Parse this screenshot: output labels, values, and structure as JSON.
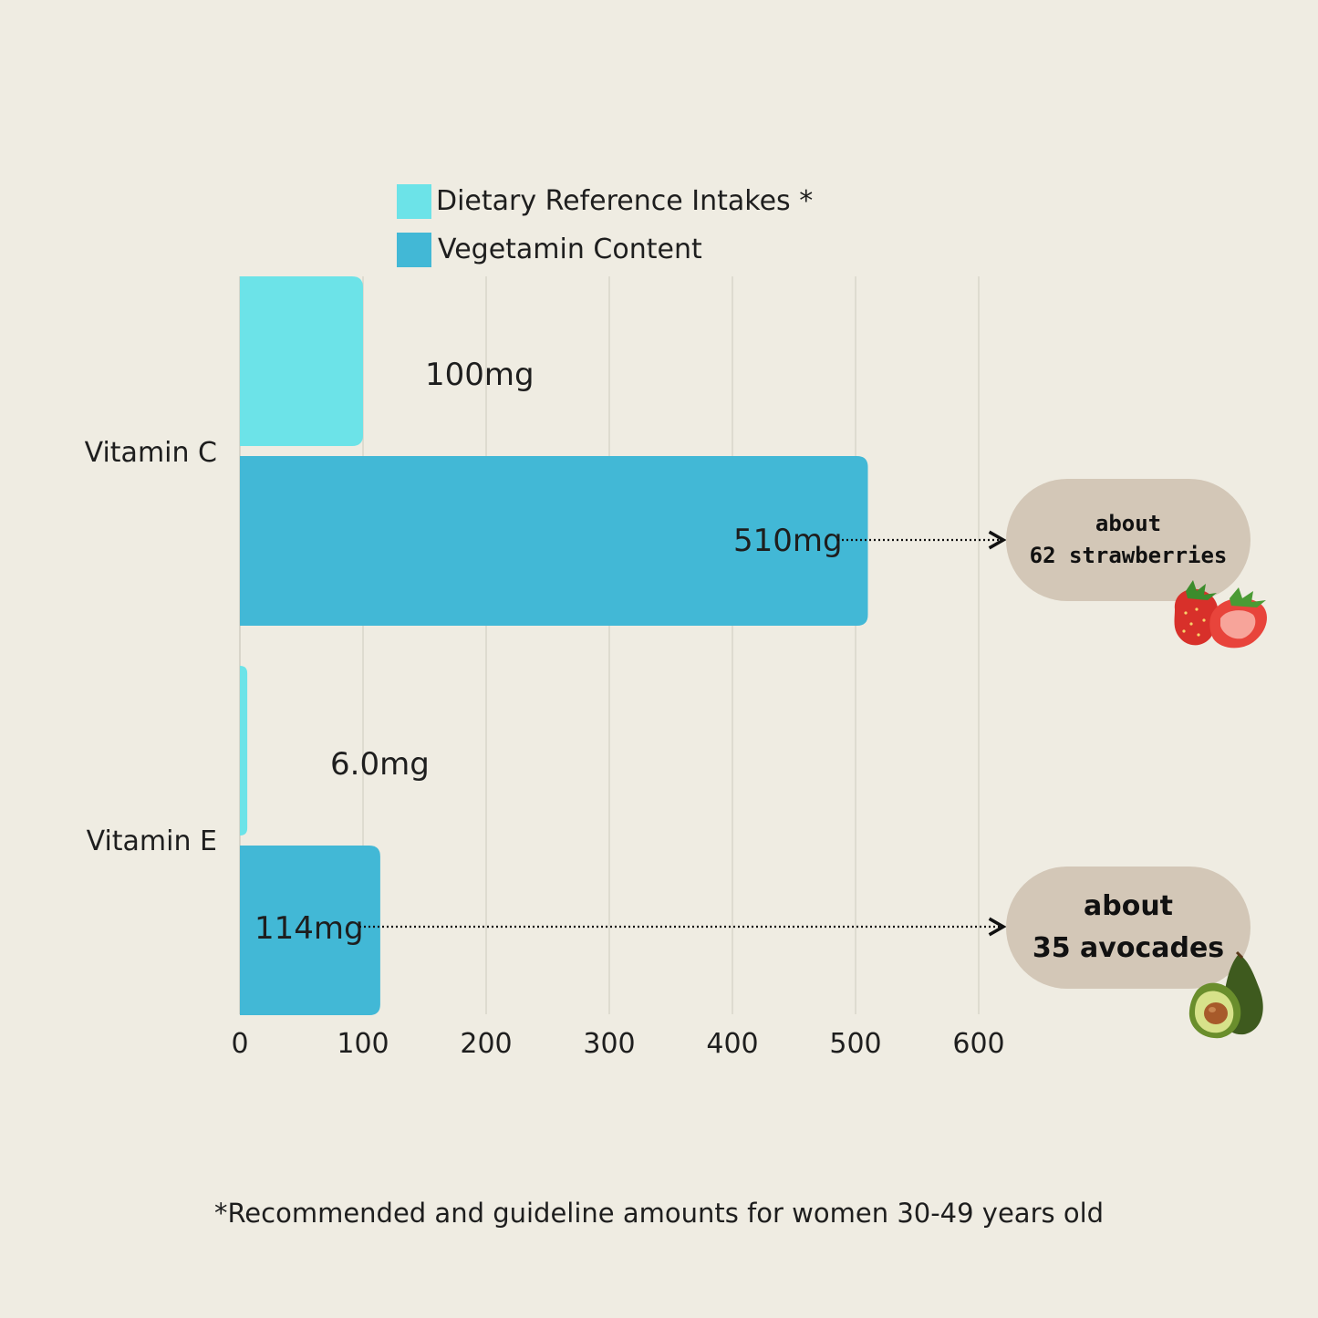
{
  "chart_data": {
    "type": "bar",
    "orientation": "horizontal",
    "categories": [
      "Vitamin C",
      "Vitamin E"
    ],
    "series": [
      {
        "name": "Dietary Reference Intakes *",
        "color": "#6ce3e8",
        "values": [
          100,
          6.0
        ],
        "labels": [
          "100mg",
          "6.0mg"
        ]
      },
      {
        "name": "Vegetamin Content",
        "color": "#42b8d6",
        "values": [
          510,
          114
        ],
        "labels": [
          "510mg",
          "114mg"
        ]
      }
    ],
    "xlim": [
      0,
      600
    ],
    "xticks": [
      0,
      100,
      200,
      300,
      400,
      500,
      600
    ],
    "xtick_labels": [
      "0",
      "100",
      "200",
      "300",
      "400",
      "500",
      "600"
    ],
    "grid": "vertical",
    "legend": "top"
  },
  "callouts": [
    {
      "line1": "about",
      "line2": "62 strawberries",
      "icon": "strawberry-icon"
    },
    {
      "line1": "about",
      "line2": "35 avocades",
      "icon": "avocado-icon"
    }
  ],
  "footnote": "*Recommended and guideline amounts for women 30-49 years old"
}
